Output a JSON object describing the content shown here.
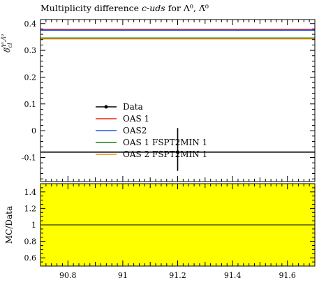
{
  "chart_data": {
    "type": "line",
    "title": "Multiplicity difference",
    "title_process": "c-uds",
    "title_suffix": "for",
    "title_particles": "Λ⁰, Λ̄⁰",
    "ylabel_symbol": "δ",
    "ylabel_sub": "cl",
    "ylabel_sup": "Λ⁰,Λ̄⁰",
    "ratio_ylabel": "MC/Data",
    "xlim": [
      90.7,
      91.7
    ],
    "ylim": [
      -0.19,
      0.415
    ],
    "ratio_ylim": [
      0.5,
      1.5
    ],
    "xticks": [
      "90.8",
      "91",
      "91.2",
      "91.4",
      "91.6"
    ],
    "xtick_values": [
      90.8,
      91.0,
      91.2,
      91.4,
      91.6
    ],
    "yticks": [
      "-0.1",
      "0",
      "0.1",
      "0.2",
      "0.3",
      "0.4"
    ],
    "ytick_values": [
      -0.1,
      0,
      0.1,
      0.2,
      0.3,
      0.4
    ],
    "ratio_yticks": [
      "0.6",
      "0.8",
      "1",
      "1.2",
      "1.4"
    ],
    "ratio_ytick_values": [
      0.6,
      0.8,
      1.0,
      1.2,
      1.4
    ],
    "ratio_band_color": "#ffff00",
    "data_point": {
      "x": 91.2,
      "y": -0.08,
      "yerr_low": 0.07,
      "yerr_high": 0.09
    },
    "series": [
      {
        "name": "Data",
        "color": "#000000",
        "values": [
          -0.08,
          -0.08
        ]
      },
      {
        "name": "OAS 1",
        "color": "#ee2211",
        "values": [
          0.378,
          0.378
        ]
      },
      {
        "name": "OAS2",
        "color": "#2255ee",
        "values": [
          0.375,
          0.375
        ]
      },
      {
        "name": "OAS 1 FSPT2MIN 1",
        "color": "#118811",
        "values": [
          0.346,
          0.346
        ]
      },
      {
        "name": "OAS 2 FSPT2MIN 1",
        "color": "#ee8811",
        "values": [
          0.343,
          0.343
        ]
      }
    ],
    "x": [
      90.7,
      91.7
    ],
    "legend_position": "center-left"
  }
}
